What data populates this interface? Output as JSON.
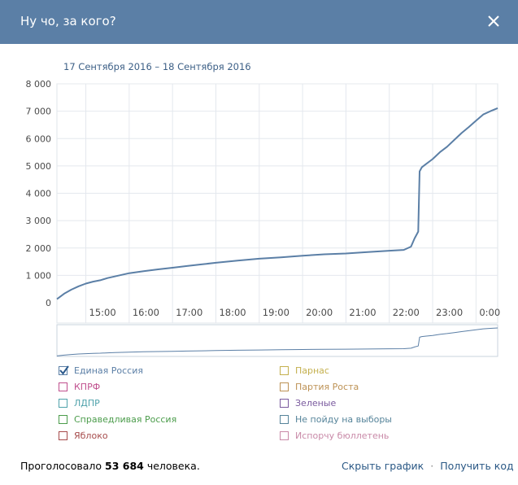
{
  "window": {
    "title": "Ну чо, за кого?"
  },
  "date_range": "17 Сентября 2016 – 18 Сентября 2016",
  "chart_data": {
    "type": "line",
    "x_ticks": [
      "15:00",
      "16:00",
      "17:00",
      "18:00",
      "19:00",
      "20:00",
      "21:00",
      "22:00",
      "23:00",
      "0:00"
    ],
    "y_ticks": [
      "0",
      "1 000",
      "2 000",
      "3 000",
      "4 000",
      "5 000",
      "6 000",
      "7 000",
      "8 000"
    ],
    "ylim": [
      0,
      8000
    ],
    "xlim": [
      "14:20",
      "0:30"
    ],
    "grid": true,
    "series": [
      {
        "name": "Единая Россия",
        "color": "#5b7fa6",
        "x": [
          "14:20",
          "14:30",
          "14:40",
          "14:50",
          "15:00",
          "15:10",
          "15:20",
          "15:30",
          "15:40",
          "15:50",
          "16:00",
          "16:20",
          "16:40",
          "17:00",
          "17:20",
          "17:40",
          "18:00",
          "18:30",
          "19:00",
          "19:30",
          "20:00",
          "20:30",
          "21:00",
          "21:30",
          "22:00",
          "22:20",
          "22:30",
          "22:35",
          "22:40",
          "22:42",
          "22:45",
          "22:50",
          "23:00",
          "23:10",
          "23:20",
          "23:30",
          "23:40",
          "23:50",
          "0:00",
          "0:10",
          "0:20",
          "0:30"
        ],
        "values": [
          130,
          330,
          480,
          600,
          700,
          770,
          820,
          900,
          960,
          1020,
          1080,
          1150,
          1220,
          1280,
          1340,
          1400,
          1460,
          1540,
          1610,
          1660,
          1720,
          1770,
          1800,
          1850,
          1900,
          1930,
          2050,
          2350,
          2600,
          4800,
          4950,
          5050,
          5250,
          5500,
          5700,
          5950,
          6200,
          6420,
          6650,
          6880,
          7000,
          7110
        ]
      }
    ]
  },
  "legend": [
    {
      "label": "Единая Россия",
      "color": "#5b7fa6",
      "checked": true
    },
    {
      "label": "КПРФ",
      "color": "#c0508e",
      "checked": false
    },
    {
      "label": "ЛДПР",
      "color": "#4fa2ab",
      "checked": false
    },
    {
      "label": "Справедливая Россия",
      "color": "#4b9c4b",
      "checked": false
    },
    {
      "label": "Яблоко",
      "color": "#a64b4b",
      "checked": false
    },
    {
      "label": "Парнас",
      "color": "#c4b04e",
      "checked": false
    },
    {
      "label": "Партия Роста",
      "color": "#bd9255",
      "checked": false
    },
    {
      "label": "Зеленые",
      "color": "#7a5a9e",
      "checked": false
    },
    {
      "label": "Не пойду на выборы",
      "color": "#56849a",
      "checked": false
    },
    {
      "label": "Испорчу бюллетень",
      "color": "#c98aa8",
      "checked": false
    }
  ],
  "footer": {
    "voted_prefix": "Проголосовало",
    "voted_count": "53 684",
    "voted_suffix": "человека.",
    "hide_chart": "Скрыть график",
    "separator": "·",
    "get_code": "Получить код"
  }
}
